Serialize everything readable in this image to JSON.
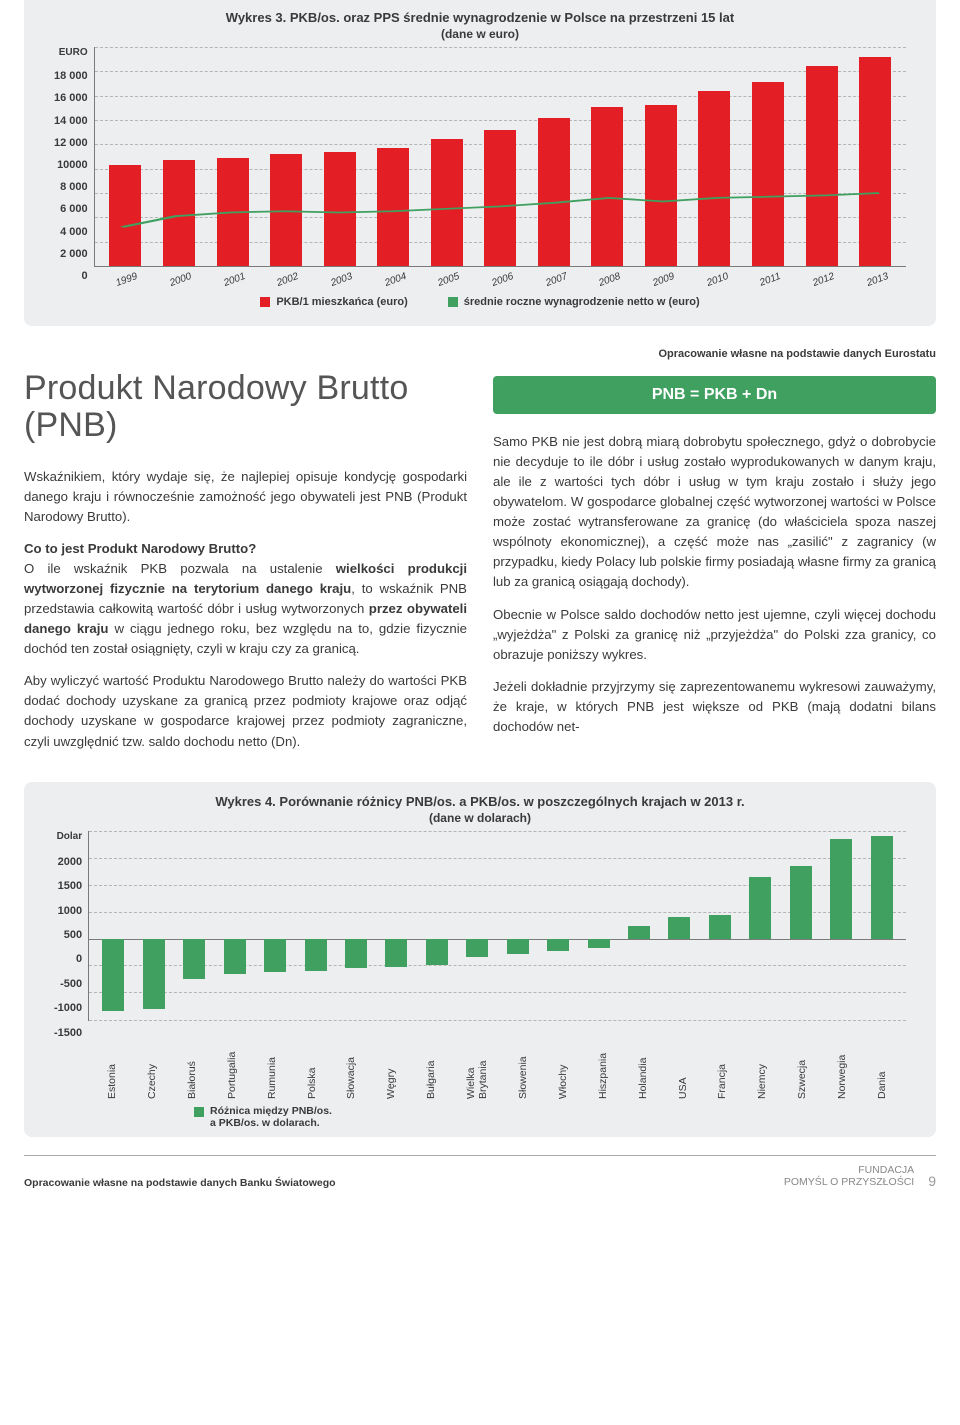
{
  "chart3": {
    "type": "bar+line",
    "title": "Wykres 3. PKB/os. oraz PPS średnie wynagrodzenie w Polsce na przestrzeni 15 lat",
    "subtitle": "(dane w euro)",
    "y_unit": "EURO",
    "y_ticks": [
      "18 000",
      "16 000",
      "14 000",
      "12 000",
      "10000",
      "8 000",
      "6 000",
      "4 000",
      "2 000",
      "0"
    ],
    "ymax": 18000,
    "categories": [
      "1999",
      "2000",
      "2001",
      "2002",
      "2003",
      "2004",
      "2005",
      "2006",
      "2007",
      "2008",
      "2009",
      "2010",
      "2011",
      "2012",
      "2013"
    ],
    "bar_values": [
      8300,
      8700,
      8900,
      9200,
      9400,
      9700,
      10400,
      11200,
      12200,
      13100,
      13200,
      14400,
      15100,
      16400,
      17200
    ],
    "bar_color": "#e31e24",
    "line_values": [
      3200,
      4100,
      4400,
      4500,
      4400,
      4500,
      4700,
      4900,
      5200,
      5600,
      5300,
      5600,
      5700,
      5800,
      6000
    ],
    "line_color": "#3fa060",
    "legend": [
      {
        "color": "#e31e24",
        "label": "PKB/1 mieszkańca (euro)"
      },
      {
        "color": "#3fa060",
        "label": "średnie roczne wynagrodzenie netto w (euro)"
      }
    ],
    "background_color": "#eceef0",
    "grid_color": "#b5b5b5"
  },
  "source_top": "Opracowanie własne na podstawie danych Eurostatu",
  "heading": "Produkt Narodowy Brutto (PNB)",
  "formula": "PNB = PKB + Dn",
  "col_left": {
    "p1": "Wskaźnikiem, który wydaje się, że najlepiej opisuje kondycję gospodarki danego kraju i równocześnie zamożność jego obywateli jest PNB (Produkt Narodowy Brutto).",
    "h": "Co to jest Produkt Narodowy Brutto?",
    "p2a": "O ile wskaźnik PKB pozwala na ustalenie ",
    "p2b_strong": "wielkości produkcji wytworzonej fizycznie na terytorium danego kraju",
    "p2c": ", to wskaźnik PNB przedstawia całkowitą wartość dóbr i usług wytworzonych ",
    "p2d_strong": "przez obywateli danego kraju",
    "p2e": " w ciągu jednego roku, bez względu na to, gdzie fizycznie dochód ten został osiągnięty, czyli w kraju czy za granicą.",
    "p3": "Aby wyliczyć wartość Produktu Narodowego Brutto należy do wartości PKB dodać dochody uzyskane za granicą przez podmioty krajowe oraz odjąć dochody uzyskane w gospodarce krajowej przez podmioty zagraniczne, czyli uwzględnić tzw. saldo dochodu netto (Dn)."
  },
  "col_right": {
    "p1": "Samo PKB nie jest dobrą miarą dobrobytu społecznego, gdyż o dobrobycie nie decyduje to ile dóbr i usług zostało wyprodukowanych w danym kraju, ale ile z wartości tych dóbr i usług w tym kraju zostało i służy jego obywatelom. W gospodarce globalnej część wytworzonej wartości w Polsce może zostać wytransferowane za granicę (do właściciela spoza naszej wspólnoty ekonomicznej), a część może nas „zasilić\" z zagranicy (w przypadku, kiedy Polacy lub polskie firmy posiadają własne firmy za granicą lub za granicą osiągają dochody).",
    "p2": "Obecnie w Polsce saldo dochodów netto jest ujemne, czyli więcej dochodu „wyjeżdża\" z Polski za granicę niż „przyjeżdża\" do Polski zza granicy, co obrazuje poniższy wykres.",
    "p3": "Jeżeli dokładnie przyjrzymy się zaprezentowanemu wykresowi zauważymy, że kraje, w których PNB jest większe od PKB (mają dodatni bilans dochodów net-"
  },
  "chart4": {
    "type": "bar",
    "title": "Wykres 4. Porównanie różnicy PNB/os. a PKB/os. w poszczególnych krajach w 2013 r.",
    "subtitle": "(dane w dolarach)",
    "y_unit": "Dolar",
    "y_ticks": [
      "2000",
      "1500",
      "1000",
      "500",
      "0",
      "-500",
      "-1000",
      "-1500"
    ],
    "ymin": -1500,
    "ymax": 2000,
    "categories": [
      "Estonia",
      "Czechy",
      "Białoruś",
      "Portugalia",
      "Rumunia",
      "Polska",
      "Słowacja",
      "Węgry",
      "Bułgaria",
      "Wielka Brytania",
      "Słowenia",
      "Włochy",
      "Hiszpania",
      "Holandia",
      "USA",
      "Francja",
      "Niemcy",
      "Szwecja",
      "Norwegia",
      "Dania"
    ],
    "values": [
      -1320,
      -1280,
      -730,
      -650,
      -610,
      -590,
      -540,
      -520,
      -480,
      -320,
      -280,
      -220,
      -160,
      250,
      400,
      450,
      1150,
      1350,
      1850,
      1900
    ],
    "bar_color": "#3fa060",
    "legend_label": "Różnica między PNB/os.\na PKB/os. w dolarach.",
    "legend_color": "#3fa060",
    "background_color": "#eceef0"
  },
  "footer": {
    "left": "Opracowanie własne na podstawie danych Banku Światowego",
    "brand1": "FUNDACJA",
    "brand2": "POMYŚL O PRZYSZŁOŚCI",
    "page": "9"
  }
}
